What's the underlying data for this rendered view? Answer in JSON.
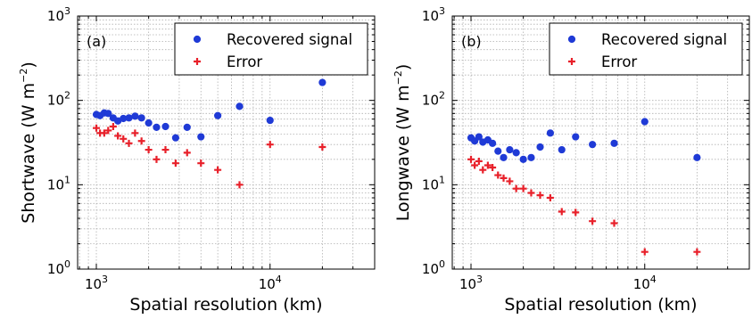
{
  "chart_data": [
    {
      "type": "scatter",
      "panel_label": "(a)",
      "xlabel": "Spatial resolution (km)",
      "ylabel": "Shortwave (W m",
      "ylabel_sup": "−2",
      "ylabel_close": ")",
      "xscale": "log",
      "yscale": "log",
      "xlim": [
        780,
        40000
      ],
      "ylim": [
        1,
        1000
      ],
      "grid": true,
      "legend_position": "top-right",
      "x_ticks": [
        {
          "value": 1000,
          "base": "10",
          "exp": "3"
        },
        {
          "value": 10000,
          "base": "10",
          "exp": "4"
        }
      ],
      "y_ticks": [
        {
          "value": 1,
          "base": "10",
          "exp": "0"
        },
        {
          "value": 10,
          "base": "10",
          "exp": "1"
        },
        {
          "value": 100,
          "base": "10",
          "exp": "2"
        },
        {
          "value": 1000,
          "base": "10",
          "exp": "3"
        }
      ],
      "series": [
        {
          "name": "Recovered signal",
          "marker": "circle",
          "color": "#1f3ad6",
          "points": [
            [
              1000,
              68
            ],
            [
              1050,
              66
            ],
            [
              1110,
              71
            ],
            [
              1170,
              70
            ],
            [
              1250,
              62
            ],
            [
              1330,
              57
            ],
            [
              1430,
              61
            ],
            [
              1540,
              62
            ],
            [
              1670,
              65
            ],
            [
              1820,
              62
            ],
            [
              2000,
              54
            ],
            [
              2220,
              48
            ],
            [
              2500,
              49
            ],
            [
              2860,
              36
            ],
            [
              3330,
              48
            ],
            [
              4000,
              37
            ],
            [
              5000,
              66
            ],
            [
              6670,
              85
            ],
            [
              10000,
              58
            ],
            [
              20000,
              163
            ]
          ]
        },
        {
          "name": "Error",
          "marker": "plus",
          "color": "#e8202a",
          "points": [
            [
              1000,
              47
            ],
            [
              1050,
              41
            ],
            [
              1110,
              41
            ],
            [
              1170,
              44
            ],
            [
              1250,
              49
            ],
            [
              1330,
              38
            ],
            [
              1430,
              35
            ],
            [
              1540,
              31
            ],
            [
              1670,
              41
            ],
            [
              1820,
              33
            ],
            [
              2000,
              26
            ],
            [
              2220,
              20
            ],
            [
              2500,
              26
            ],
            [
              2860,
              18
            ],
            [
              3330,
              24
            ],
            [
              4000,
              18
            ],
            [
              5000,
              15
            ],
            [
              6670,
              10
            ],
            [
              10000,
              30
            ],
            [
              20000,
              28
            ]
          ]
        }
      ]
    },
    {
      "type": "scatter",
      "panel_label": "(b)",
      "xlabel": "Spatial resolution (km)",
      "ylabel": "Longwave (W m",
      "ylabel_sup": "−2",
      "ylabel_close": ")",
      "xscale": "log",
      "yscale": "log",
      "xlim": [
        780,
        40000
      ],
      "ylim": [
        1,
        1000
      ],
      "grid": true,
      "legend_position": "top-right",
      "x_ticks": [
        {
          "value": 1000,
          "base": "10",
          "exp": "3"
        },
        {
          "value": 10000,
          "base": "10",
          "exp": "4"
        }
      ],
      "y_ticks": [
        {
          "value": 1,
          "base": "10",
          "exp": "0"
        },
        {
          "value": 10,
          "base": "10",
          "exp": "1"
        },
        {
          "value": 100,
          "base": "10",
          "exp": "2"
        },
        {
          "value": 1000,
          "base": "10",
          "exp": "3"
        }
      ],
      "series": [
        {
          "name": "Recovered signal",
          "marker": "circle",
          "color": "#1f3ad6",
          "points": [
            [
              1000,
              36
            ],
            [
              1050,
              33
            ],
            [
              1110,
              37
            ],
            [
              1170,
              32
            ],
            [
              1250,
              34
            ],
            [
              1330,
              31
            ],
            [
              1430,
              25
            ],
            [
              1540,
              21
            ],
            [
              1670,
              26
            ],
            [
              1820,
              24
            ],
            [
              2000,
              20
            ],
            [
              2220,
              21
            ],
            [
              2500,
              28
            ],
            [
              2860,
              41
            ],
            [
              3330,
              26
            ],
            [
              4000,
              37
            ],
            [
              5000,
              30
            ],
            [
              6670,
              31
            ],
            [
              10000,
              56
            ],
            [
              20000,
              21
            ]
          ]
        },
        {
          "name": "Error",
          "marker": "plus",
          "color": "#e8202a",
          "points": [
            [
              1000,
              20
            ],
            [
              1050,
              17
            ],
            [
              1110,
              19
            ],
            [
              1170,
              15
            ],
            [
              1250,
              17
            ],
            [
              1330,
              16
            ],
            [
              1430,
              13
            ],
            [
              1540,
              12
            ],
            [
              1670,
              11
            ],
            [
              1820,
              9
            ],
            [
              2000,
              9
            ],
            [
              2220,
              8
            ],
            [
              2500,
              7.5
            ],
            [
              2860,
              7
            ],
            [
              3330,
              4.8
            ],
            [
              4000,
              4.7
            ],
            [
              5000,
              3.7
            ],
            [
              6670,
              3.5
            ],
            [
              10000,
              1.6
            ],
            [
              20000,
              1.6
            ]
          ]
        }
      ]
    }
  ]
}
